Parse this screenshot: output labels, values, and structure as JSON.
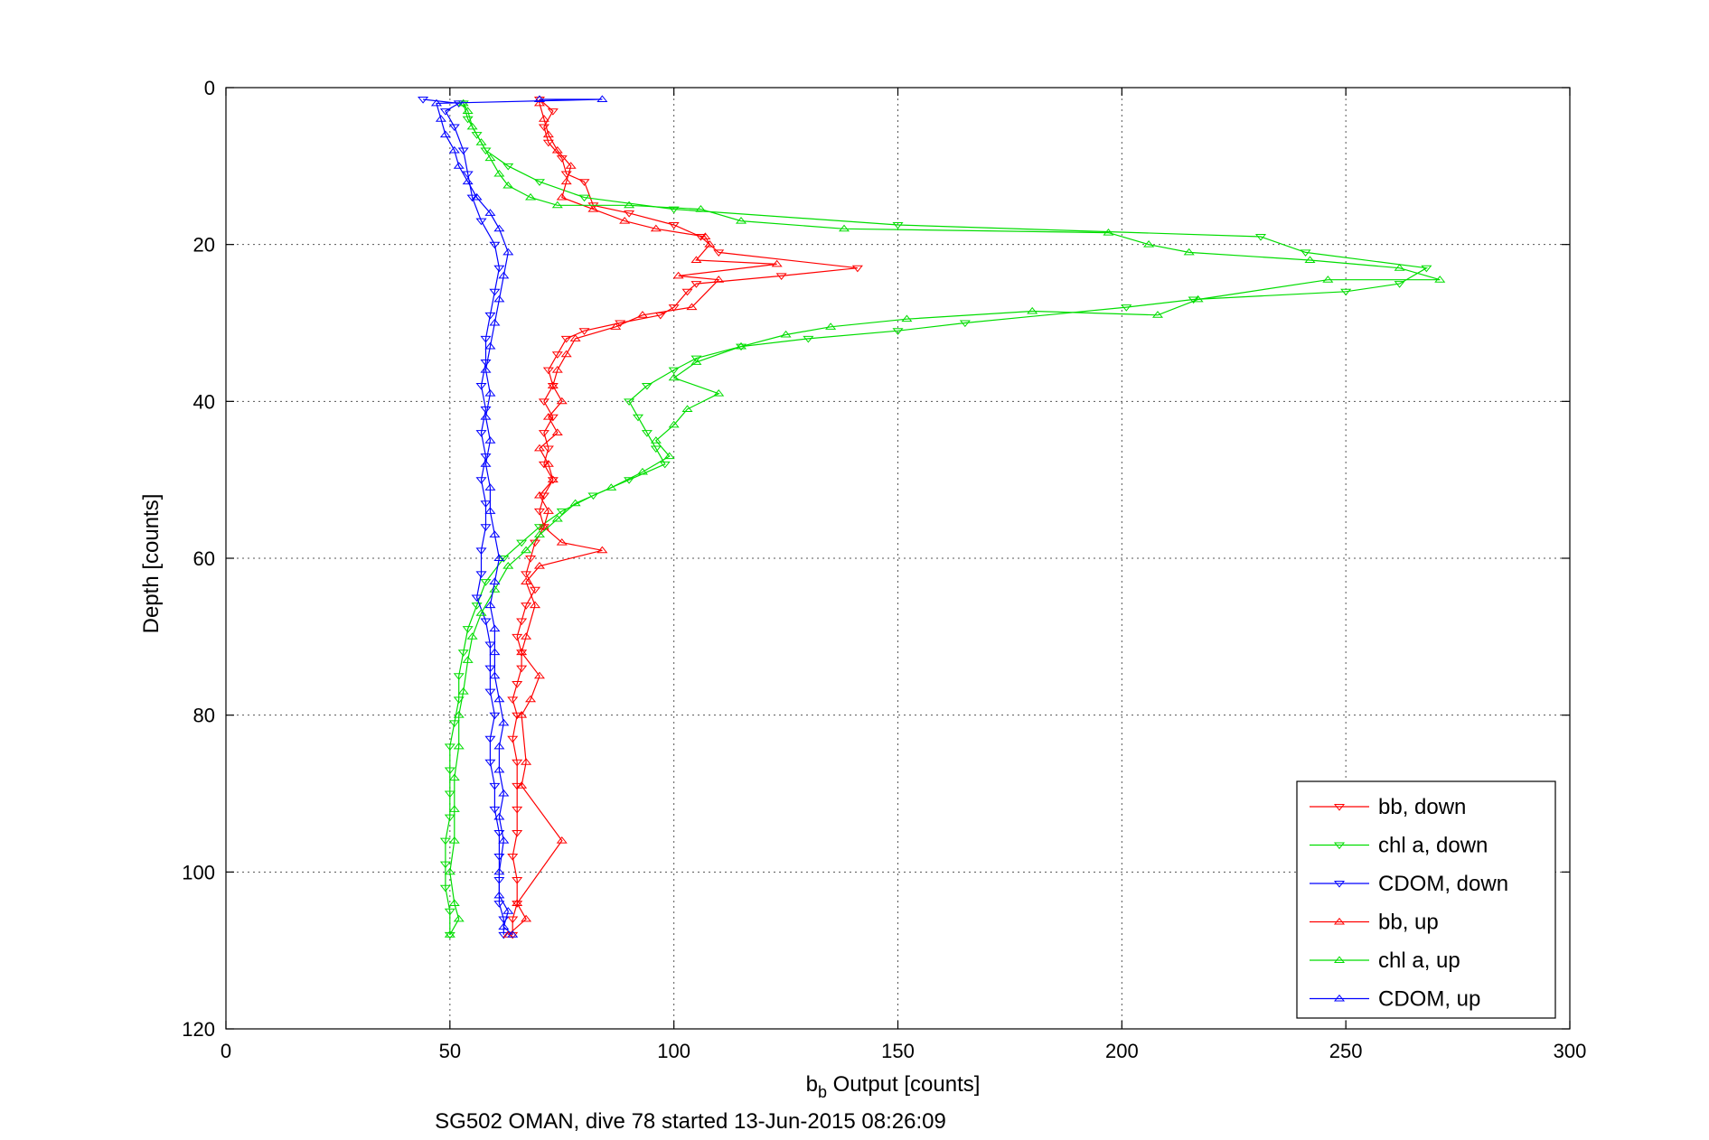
{
  "chart_data": {
    "type": "line",
    "title": "",
    "xlabel_main": "b",
    "xlabel_sub": "b",
    "xlabel_rest": " Output [counts]",
    "ylabel": "Depth [counts]",
    "caption": "SG502 OMAN, dive 78 started 13-Jun-2015 08:26:09",
    "xlim": [
      0,
      300
    ],
    "ylim": [
      0,
      120
    ],
    "y_reversed": true,
    "grid": true,
    "legend_position": "bottom-right",
    "x_ticks": [
      "0",
      "50",
      "100",
      "150",
      "200",
      "250",
      "300"
    ],
    "y_ticks": [
      "0",
      "20",
      "40",
      "60",
      "80",
      "100",
      "120"
    ],
    "series": [
      {
        "name": "bb, down",
        "color": "#ff0000",
        "marker": "triangle-down",
        "points": [
          [
            70,
            1.5
          ],
          [
            73,
            3
          ],
          [
            71,
            5
          ],
          [
            72,
            7
          ],
          [
            75,
            9
          ],
          [
            76,
            11
          ],
          [
            80,
            12
          ],
          [
            82,
            15
          ],
          [
            90,
            16
          ],
          [
            100,
            17.5
          ],
          [
            106,
            19
          ],
          [
            110,
            21
          ],
          [
            141,
            23
          ],
          [
            124,
            24
          ],
          [
            105,
            25
          ],
          [
            103,
            26
          ],
          [
            100,
            28
          ],
          [
            97,
            29
          ],
          [
            88,
            30
          ],
          [
            80,
            31
          ],
          [
            76,
            32
          ],
          [
            74,
            34
          ],
          [
            72,
            36
          ],
          [
            73,
            38
          ],
          [
            71,
            40
          ],
          [
            73,
            42
          ],
          [
            71,
            44
          ],
          [
            72,
            46
          ],
          [
            71,
            48
          ],
          [
            73,
            50
          ],
          [
            71,
            52
          ],
          [
            70,
            54
          ],
          [
            71,
            56
          ],
          [
            69,
            58
          ],
          [
            68,
            60
          ],
          [
            67,
            62
          ],
          [
            69,
            64
          ],
          [
            67,
            66
          ],
          [
            66,
            68
          ],
          [
            65,
            70
          ],
          [
            66,
            72
          ],
          [
            66,
            74
          ],
          [
            65,
            76
          ],
          [
            64,
            78
          ],
          [
            65,
            80
          ],
          [
            64,
            83
          ],
          [
            65,
            86
          ],
          [
            65,
            89
          ],
          [
            65,
            92
          ],
          [
            65,
            95
          ],
          [
            64,
            98
          ],
          [
            65,
            101
          ],
          [
            65,
            104
          ],
          [
            64,
            106
          ],
          [
            64,
            108
          ]
        ]
      },
      {
        "name": "chl a, down",
        "color": "#00dd00",
        "marker": "triangle-down",
        "points": [
          [
            53,
            2
          ],
          [
            54,
            4
          ],
          [
            56,
            6
          ],
          [
            58,
            8
          ],
          [
            63,
            10
          ],
          [
            70,
            12
          ],
          [
            80,
            14
          ],
          [
            100,
            15.5
          ],
          [
            150,
            17.5
          ],
          [
            231,
            19
          ],
          [
            241,
            21
          ],
          [
            268,
            23
          ],
          [
            262,
            25
          ],
          [
            250,
            26
          ],
          [
            216,
            27
          ],
          [
            201,
            28
          ],
          [
            165,
            30
          ],
          [
            150,
            31
          ],
          [
            130,
            32
          ],
          [
            115,
            33
          ],
          [
            105,
            34.5
          ],
          [
            100,
            36
          ],
          [
            94,
            38
          ],
          [
            90,
            40
          ],
          [
            92,
            42
          ],
          [
            94,
            44
          ],
          [
            96,
            46
          ],
          [
            98,
            48
          ],
          [
            90,
            50
          ],
          [
            82,
            52
          ],
          [
            75,
            54
          ],
          [
            70,
            56
          ],
          [
            66,
            58
          ],
          [
            62,
            60
          ],
          [
            58,
            63
          ],
          [
            56,
            66
          ],
          [
            54,
            69
          ],
          [
            53,
            72
          ],
          [
            52,
            75
          ],
          [
            52,
            78
          ],
          [
            51,
            81
          ],
          [
            50,
            84
          ],
          [
            50,
            87
          ],
          [
            50,
            90
          ],
          [
            50,
            93
          ],
          [
            49,
            96
          ],
          [
            49,
            99
          ],
          [
            49,
            102
          ],
          [
            50,
            105
          ],
          [
            50,
            108
          ]
        ]
      },
      {
        "name": "CDOM, down",
        "color": "#0000ff",
        "marker": "triangle-down",
        "points": [
          [
            44,
            1.5
          ],
          [
            52,
            2
          ],
          [
            49,
            3
          ],
          [
            51,
            5
          ],
          [
            53,
            8
          ],
          [
            54,
            11
          ],
          [
            55,
            14
          ],
          [
            57,
            17
          ],
          [
            60,
            20
          ],
          [
            61,
            23
          ],
          [
            60,
            26
          ],
          [
            59,
            29
          ],
          [
            58,
            32
          ],
          [
            58,
            35
          ],
          [
            57,
            38
          ],
          [
            58,
            41
          ],
          [
            57,
            44
          ],
          [
            58,
            47
          ],
          [
            57,
            50
          ],
          [
            58,
            53
          ],
          [
            58,
            56
          ],
          [
            57,
            59
          ],
          [
            57,
            62
          ],
          [
            56,
            65
          ],
          [
            58,
            68
          ],
          [
            59,
            71
          ],
          [
            59,
            74
          ],
          [
            59,
            77
          ],
          [
            60,
            80
          ],
          [
            59,
            83
          ],
          [
            59,
            86
          ],
          [
            60,
            89
          ],
          [
            60,
            92
          ],
          [
            61,
            95
          ],
          [
            61,
            98
          ],
          [
            61,
            101
          ],
          [
            61,
            104
          ],
          [
            62,
            106
          ],
          [
            62,
            108
          ]
        ]
      },
      {
        "name": "bb, up",
        "color": "#ff0000",
        "marker": "triangle-up",
        "points": [
          [
            63,
            108
          ],
          [
            67,
            106
          ],
          [
            65,
            104
          ],
          [
            75,
            96
          ],
          [
            66,
            89
          ],
          [
            67,
            86
          ],
          [
            66,
            80
          ],
          [
            68,
            78
          ],
          [
            70,
            75
          ],
          [
            66,
            72
          ],
          [
            67,
            70
          ],
          [
            69,
            66
          ],
          [
            67,
            63
          ],
          [
            70,
            61
          ],
          [
            84,
            59
          ],
          [
            75,
            58
          ],
          [
            71,
            56
          ],
          [
            72,
            54
          ],
          [
            70,
            52
          ],
          [
            73,
            50
          ],
          [
            72,
            48
          ],
          [
            70,
            46
          ],
          [
            74,
            44
          ],
          [
            72,
            42
          ],
          [
            75,
            40
          ],
          [
            73,
            38
          ],
          [
            74,
            36
          ],
          [
            76,
            34
          ],
          [
            78,
            32
          ],
          [
            87,
            30.5
          ],
          [
            93,
            29
          ],
          [
            104,
            28
          ],
          [
            110,
            24.5
          ],
          [
            101,
            24
          ],
          [
            123,
            22.5
          ],
          [
            105,
            22
          ],
          [
            108,
            20
          ],
          [
            107,
            19
          ],
          [
            96,
            18
          ],
          [
            89,
            17
          ],
          [
            82,
            15.5
          ],
          [
            75,
            14
          ],
          [
            76,
            12
          ],
          [
            77,
            10
          ],
          [
            74,
            8
          ],
          [
            72,
            6
          ],
          [
            71,
            4
          ],
          [
            70,
            2
          ]
        ]
      },
      {
        "name": "chl a, up",
        "color": "#00dd00",
        "marker": "triangle-up",
        "points": [
          [
            50,
            108
          ],
          [
            52,
            106
          ],
          [
            51,
            104
          ],
          [
            50,
            100
          ],
          [
            51,
            96
          ],
          [
            51,
            92
          ],
          [
            51,
            88
          ],
          [
            52,
            84
          ],
          [
            52,
            80
          ],
          [
            53,
            77
          ],
          [
            54,
            73
          ],
          [
            55,
            70
          ],
          [
            57,
            67
          ],
          [
            60,
            64
          ],
          [
            63,
            61
          ],
          [
            67,
            59
          ],
          [
            70,
            57
          ],
          [
            74,
            55
          ],
          [
            78,
            53
          ],
          [
            86,
            51
          ],
          [
            93,
            49
          ],
          [
            99,
            47
          ],
          [
            96,
            45
          ],
          [
            100,
            43
          ],
          [
            103,
            41
          ],
          [
            110,
            39
          ],
          [
            100,
            37
          ],
          [
            105,
            35
          ],
          [
            115,
            33
          ],
          [
            125,
            31.5
          ],
          [
            135,
            30.5
          ],
          [
            152,
            29.5
          ],
          [
            180,
            28.5
          ],
          [
            208,
            29
          ],
          [
            217,
            27
          ],
          [
            246,
            24.5
          ],
          [
            271,
            24.5
          ],
          [
            262,
            23
          ],
          [
            242,
            22
          ],
          [
            215,
            21
          ],
          [
            206,
            20
          ],
          [
            197,
            18.5
          ],
          [
            138,
            18
          ],
          [
            115,
            17
          ],
          [
            106,
            15.5
          ],
          [
            90,
            15
          ],
          [
            74,
            15
          ],
          [
            68,
            14
          ],
          [
            63,
            12.5
          ],
          [
            61,
            11
          ],
          [
            59,
            9
          ],
          [
            57,
            7
          ],
          [
            55,
            5
          ],
          [
            54,
            3
          ],
          [
            53,
            2
          ]
        ]
      },
      {
        "name": "CDOM, up",
        "color": "#0000ff",
        "marker": "triangle-up",
        "points": [
          [
            64,
            108
          ],
          [
            62,
            107
          ],
          [
            63,
            105
          ],
          [
            61,
            103
          ],
          [
            61,
            100
          ],
          [
            62,
            96
          ],
          [
            61,
            93
          ],
          [
            62,
            90
          ],
          [
            61,
            87
          ],
          [
            61,
            84
          ],
          [
            62,
            81
          ],
          [
            61,
            78
          ],
          [
            60,
            75
          ],
          [
            60,
            72
          ],
          [
            60,
            69
          ],
          [
            59,
            66
          ],
          [
            60,
            63
          ],
          [
            61,
            60
          ],
          [
            60,
            57
          ],
          [
            59,
            54
          ],
          [
            59,
            51
          ],
          [
            58,
            48
          ],
          [
            59,
            45
          ],
          [
            58,
            42
          ],
          [
            59,
            39
          ],
          [
            58,
            36
          ],
          [
            59,
            33
          ],
          [
            60,
            30
          ],
          [
            61,
            27
          ],
          [
            62,
            24
          ],
          [
            63,
            21
          ],
          [
            61,
            18
          ],
          [
            59,
            16
          ],
          [
            56,
            14
          ],
          [
            54,
            12
          ],
          [
            52,
            10
          ],
          [
            51,
            8
          ],
          [
            49,
            6
          ],
          [
            48,
            4
          ],
          [
            47,
            2
          ],
          [
            84,
            1.5
          ],
          [
            70,
            1.5
          ]
        ]
      }
    ]
  }
}
